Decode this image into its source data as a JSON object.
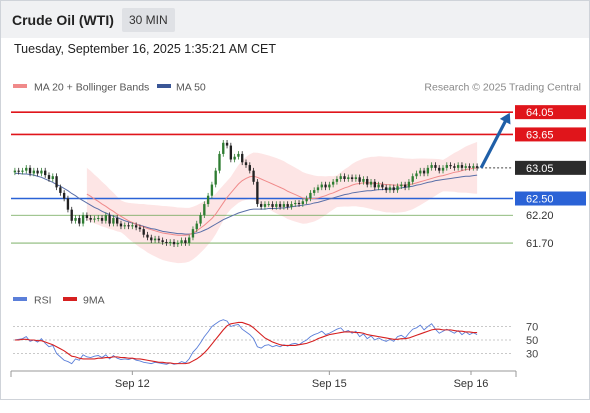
{
  "header": {
    "instrument": "Crude Oil (WTI)",
    "interval": "30 MIN"
  },
  "datetime": "Tuesday, September 16, 2025 1:35:21 AM CET",
  "legend": {
    "ma20": "MA 20 + Bollinger Bands",
    "ma50": "MA 50",
    "copyright": "Research © 2025 Trading Central"
  },
  "colors": {
    "up": "#2e7d32",
    "down": "#222222",
    "ma20": "#f08a8a",
    "ma50": "#5a6fa8",
    "band": "#fde0e0",
    "resistance": "#e0151b",
    "pivot": "#2a62d6",
    "support": "#6aa552",
    "last": "#2b2b2b",
    "arrow": "#1f5fa8",
    "rsi": "#5b7fd9",
    "rsi_ma": "#d62020"
  },
  "chart_data": [
    {
      "type": "candlestick",
      "title": "Crude Oil (WTI) 30 MIN",
      "x_ticks": [
        "Sep 12",
        "Sep 15",
        "Sep 16"
      ],
      "y_labels": [
        "64.05",
        "63.65",
        "63.05",
        "62.50",
        "62.20",
        "61.70"
      ],
      "y_range": [
        61.45,
        64.25
      ],
      "last_price": 63.05,
      "levels": [
        {
          "name": "resistance-2",
          "value": 64.05,
          "label": "64.05",
          "kind": "resistance"
        },
        {
          "name": "resistance-1",
          "value": 63.65,
          "label": "63.65",
          "kind": "resistance"
        },
        {
          "name": "pivot",
          "value": 62.5,
          "label": "62.50",
          "kind": "pivot"
        },
        {
          "name": "support-1",
          "value": 62.2,
          "label": "62.20",
          "kind": "support"
        },
        {
          "name": "support-2",
          "value": 61.7,
          "label": "61.70",
          "kind": "support"
        }
      ],
      "forecast_arrow": {
        "from": 63.05,
        "to": 64.05
      },
      "close": [
        63.0,
        62.98,
        63.0,
        63.05,
        62.95,
        63.0,
        62.95,
        63.0,
        62.92,
        62.85,
        62.9,
        62.7,
        62.6,
        62.5,
        62.3,
        62.1,
        62.15,
        62.05,
        62.2,
        62.15,
        62.12,
        62.14,
        62.15,
        62.1,
        62.2,
        62.05,
        62.15,
        62.05,
        62.0,
        62.02,
        62.0,
        62.02,
        61.98,
        61.95,
        61.85,
        61.8,
        61.75,
        61.78,
        61.75,
        61.72,
        61.7,
        61.72,
        61.68,
        61.7,
        61.75,
        61.7,
        61.8,
        61.95,
        62.05,
        62.2,
        62.4,
        62.55,
        62.75,
        63.0,
        63.3,
        63.5,
        63.45,
        63.2,
        63.25,
        63.3,
        63.15,
        63.1,
        63.0,
        62.8,
        62.4,
        62.35,
        62.4,
        62.4,
        62.35,
        62.4,
        62.35,
        62.4,
        62.35,
        62.4,
        62.42,
        62.4,
        62.45,
        62.5,
        62.6,
        62.65,
        62.7,
        62.75,
        62.7,
        62.75,
        62.8,
        62.85,
        62.9,
        62.85,
        62.88,
        62.85,
        62.88,
        62.8,
        62.85,
        62.75,
        62.8,
        62.7,
        62.75,
        62.7,
        62.65,
        62.7,
        62.65,
        62.72,
        62.75,
        62.7,
        62.8,
        62.9,
        62.95,
        63.0,
        62.95,
        63.05,
        63.1,
        63.05,
        63.0,
        63.05,
        63.1,
        63.08,
        63.05,
        63.1,
        63.05,
        63.08,
        63.05,
        63.08,
        63.05
      ],
      "ma20": [
        null,
        null,
        null,
        null,
        null,
        null,
        null,
        null,
        null,
        null,
        null,
        null,
        null,
        null,
        null,
        null,
        null,
        null,
        null,
        62.58,
        62.54,
        62.49,
        62.45,
        62.4,
        62.36,
        62.31,
        62.27,
        62.22,
        62.18,
        62.14,
        62.1,
        62.07,
        62.04,
        62.01,
        61.99,
        61.96,
        61.94,
        61.92,
        61.9,
        61.88,
        61.87,
        61.86,
        61.85,
        61.84,
        61.84,
        61.84,
        61.85,
        61.88,
        61.92,
        61.97,
        62.02,
        62.08,
        62.14,
        62.22,
        62.32,
        62.42,
        62.52,
        62.6,
        62.68,
        62.76,
        62.82,
        62.86,
        62.89,
        62.9,
        62.88,
        62.85,
        62.82,
        62.79,
        62.76,
        62.73,
        62.7,
        62.67,
        62.63,
        62.6,
        62.57,
        62.54,
        62.51,
        62.5,
        62.5,
        62.5,
        62.51,
        62.53,
        62.55,
        62.58,
        62.6,
        62.63,
        62.66,
        62.69,
        62.71,
        62.74,
        62.76,
        62.77,
        62.78,
        62.78,
        62.78,
        62.77,
        62.77,
        62.76,
        62.75,
        62.75,
        62.74,
        62.74,
        62.74,
        62.74,
        62.75,
        62.76,
        62.78,
        62.8,
        62.82,
        62.84,
        62.86,
        62.88,
        62.9,
        62.91,
        62.93,
        62.95,
        62.97,
        62.98,
        63.0,
        63.02,
        63.03,
        63.04,
        63.05
      ],
      "ma50": [
        62.95,
        62.95,
        62.94,
        62.94,
        62.93,
        62.92,
        62.9,
        62.88,
        62.85,
        62.82,
        62.79,
        62.75,
        62.72,
        62.68,
        62.64,
        62.59,
        62.55,
        62.5,
        62.46,
        62.42,
        62.38,
        62.34,
        62.31,
        62.27,
        62.24,
        62.21,
        62.18,
        62.16,
        62.13,
        62.1,
        62.08,
        62.06,
        62.04,
        62.02,
        62.0,
        61.98,
        61.96,
        61.95,
        61.93,
        61.91,
        61.9,
        61.89,
        61.88,
        61.87,
        61.87,
        61.86,
        61.86,
        61.87,
        61.88,
        61.9,
        61.93,
        61.96,
        62.0,
        62.04,
        62.08,
        62.12,
        62.15,
        62.18,
        62.21,
        62.24,
        62.26,
        62.28,
        62.3,
        62.31,
        62.31,
        62.31,
        62.31,
        62.32,
        62.32,
        62.32,
        62.33,
        62.33,
        62.34,
        62.35,
        62.36,
        62.37,
        62.38,
        62.39,
        62.4,
        62.42,
        62.43,
        62.45,
        62.47,
        62.49,
        62.51,
        62.53,
        62.55,
        62.57,
        62.58,
        62.6,
        62.61,
        62.62,
        62.63,
        62.64,
        62.64,
        62.65,
        62.66,
        62.66,
        62.67,
        62.67,
        62.67,
        62.68,
        62.69,
        62.7,
        62.71,
        62.72,
        62.74,
        62.75,
        62.77,
        62.79,
        62.8,
        62.82,
        62.83,
        62.84,
        62.85,
        62.86,
        62.87,
        62.88,
        62.89,
        62.9,
        62.9,
        62.91,
        62.92
      ]
    },
    {
      "type": "line",
      "title": "RSI",
      "y_range": [
        10,
        90
      ],
      "y_ticks": [
        70,
        50,
        30
      ],
      "series": [
        {
          "name": "RSI",
          "values": [
            50,
            51,
            52,
            55,
            48,
            50,
            47,
            52,
            45,
            40,
            42,
            30,
            25,
            20,
            18,
            15,
            22,
            20,
            28,
            25,
            24,
            26,
            27,
            24,
            28,
            22,
            27,
            23,
            21,
            22,
            21,
            23,
            20,
            19,
            17,
            16,
            15,
            17,
            16,
            15,
            14,
            16,
            14,
            15,
            18,
            16,
            22,
            32,
            38,
            46,
            55,
            62,
            70,
            74,
            78,
            80,
            78,
            70,
            72,
            73,
            66,
            62,
            58,
            52,
            40,
            38,
            42,
            43,
            40,
            42,
            40,
            43,
            41,
            44,
            45,
            43,
            47,
            50,
            55,
            58,
            60,
            63,
            58,
            60,
            63,
            66,
            68,
            62,
            64,
            60,
            63,
            55,
            59,
            52,
            56,
            50,
            53,
            50,
            48,
            51,
            48,
            55,
            57,
            53,
            60,
            66,
            68,
            72,
            65,
            70,
            74,
            66,
            60,
            63,
            66,
            63,
            60,
            64,
            58,
            62,
            58,
            61,
            58
          ]
        },
        {
          "name": "9MA",
          "values": [
            50,
            50,
            51,
            51,
            50,
            50,
            49,
            49,
            47,
            45,
            43,
            40,
            37,
            34,
            30,
            26,
            25,
            23,
            22,
            22,
            22,
            22,
            23,
            23,
            24,
            24,
            25,
            25,
            24,
            24,
            23,
            23,
            22,
            22,
            21,
            20,
            19,
            18,
            17,
            17,
            16,
            16,
            15,
            15,
            15,
            15,
            16,
            19,
            22,
            26,
            31,
            37,
            44,
            51,
            58,
            65,
            71,
            74,
            75,
            76,
            76,
            74,
            72,
            68,
            63,
            58,
            53,
            50,
            47,
            45,
            43,
            42,
            42,
            42,
            42,
            43,
            44,
            45,
            47,
            49,
            52,
            54,
            56,
            58,
            59,
            60,
            61,
            62,
            62,
            62,
            61,
            61,
            60,
            58,
            57,
            56,
            55,
            54,
            53,
            52,
            51,
            51,
            52,
            52,
            53,
            55,
            57,
            59,
            61,
            63,
            65,
            66,
            66,
            65,
            65,
            65,
            64,
            63,
            63,
            62,
            62,
            61,
            61
          ]
        }
      ]
    }
  ]
}
